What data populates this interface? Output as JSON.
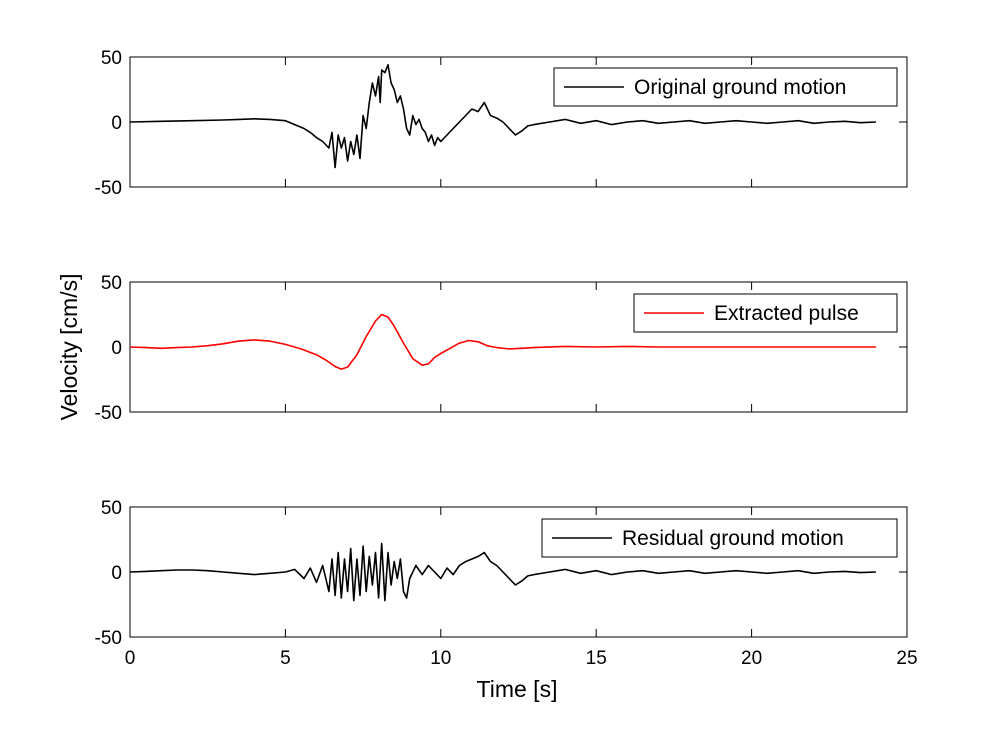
{
  "chart_data": {
    "type": "line",
    "xlabel": "Time [s]",
    "ylabel": "Velocity [cm/s]",
    "xlim": [
      0,
      25
    ],
    "ylim": [
      -50,
      50
    ],
    "xticks": [
      0,
      5,
      10,
      15,
      20,
      25
    ],
    "yticks": [
      -50,
      0,
      50
    ],
    "grid": false,
    "legend_position": "top-right",
    "panels": [
      {
        "series": [
          {
            "name": "Original ground motion",
            "color": "#000000",
            "x": [
              0,
              1,
              2,
              3,
              3.5,
              4,
              4.5,
              5,
              5.3,
              5.6,
              5.8,
              6,
              6.2,
              6.4,
              6.5,
              6.6,
              6.7,
              6.8,
              6.9,
              7,
              7.1,
              7.2,
              7.3,
              7.4,
              7.5,
              7.6,
              7.7,
              7.8,
              7.9,
              8,
              8.05,
              8.1,
              8.2,
              8.3,
              8.4,
              8.5,
              8.6,
              8.7,
              8.8,
              8.9,
              9,
              9.1,
              9.2,
              9.3,
              9.4,
              9.5,
              9.6,
              9.7,
              9.8,
              9.9,
              10,
              10.2,
              10.4,
              10.6,
              10.8,
              11,
              11.2,
              11.4,
              11.6,
              11.8,
              12,
              12.2,
              12.4,
              12.6,
              12.8,
              13,
              13.5,
              14,
              14.5,
              15,
              15.5,
              16,
              16.5,
              17,
              17.5,
              18,
              18.5,
              19,
              19.5,
              20,
              20.5,
              21,
              21.5,
              22,
              22.5,
              23,
              23.5,
              24
            ],
            "y": [
              0,
              0.5,
              1,
              1.5,
              2,
              2.5,
              2,
              1,
              -2,
              -5,
              -8,
              -12,
              -15,
              -20,
              -8,
              -35,
              -10,
              -20,
              -12,
              -30,
              -15,
              -25,
              -10,
              -28,
              5,
              -5,
              15,
              30,
              20,
              35,
              15,
              40,
              38,
              44,
              30,
              25,
              15,
              20,
              10,
              -5,
              -10,
              5,
              -2,
              2,
              -5,
              -8,
              -15,
              -10,
              -18,
              -12,
              -15,
              -10,
              -5,
              0,
              5,
              10,
              8,
              15,
              5,
              3,
              0,
              -5,
              -10,
              -7,
              -3,
              -2,
              0,
              2,
              -1,
              1,
              -2,
              0,
              1,
              -1,
              0,
              1,
              -1,
              0,
              1,
              0,
              -1,
              0,
              1,
              -1,
              0,
              0.5,
              -0.5,
              0
            ]
          }
        ]
      },
      {
        "series": [
          {
            "name": "Extracted pulse",
            "color": "#ff0000",
            "x": [
              0,
              0.5,
              1,
              1.5,
              2,
              2.5,
              3,
              3.5,
              4,
              4.5,
              5,
              5.5,
              6,
              6.3,
              6.6,
              6.8,
              7,
              7.3,
              7.6,
              7.9,
              8.1,
              8.3,
              8.5,
              8.8,
              9.1,
              9.4,
              9.6,
              9.8,
              10,
              10.3,
              10.6,
              10.9,
              11.2,
              11.5,
              11.8,
              12.2,
              12.6,
              13,
              14,
              15,
              16,
              17,
              18,
              19,
              20,
              21,
              22,
              23,
              24
            ],
            "y": [
              0,
              -0.5,
              -1,
              -0.5,
              0,
              1,
              2.5,
              4.5,
              5.5,
              4.5,
              2,
              -1.5,
              -6,
              -10,
              -15,
              -17,
              -15.5,
              -6,
              8,
              20,
              25,
              23,
              16,
              3,
              -9,
              -14,
              -13,
              -8,
              -5,
              -1,
              3,
              5,
              4,
              1,
              -0.5,
              -1.5,
              -1,
              -0.5,
              0.5,
              0,
              0.5,
              0,
              0,
              0,
              0,
              0,
              0,
              0,
              0
            ]
          }
        ]
      },
      {
        "series": [
          {
            "name": "Residual ground motion",
            "color": "#000000",
            "x": [
              0,
              0.5,
              1,
              1.5,
              2,
              2.5,
              3,
              3.5,
              4,
              4.5,
              5,
              5.3,
              5.6,
              5.8,
              6,
              6.2,
              6.4,
              6.5,
              6.6,
              6.7,
              6.8,
              6.9,
              7,
              7.1,
              7.2,
              7.3,
              7.4,
              7.5,
              7.6,
              7.7,
              7.8,
              7.9,
              8,
              8.1,
              8.2,
              8.3,
              8.4,
              8.5,
              8.6,
              8.7,
              8.8,
              8.9,
              9,
              9.2,
              9.4,
              9.6,
              9.8,
              10,
              10.2,
              10.4,
              10.6,
              10.8,
              11,
              11.2,
              11.4,
              11.6,
              11.8,
              12,
              12.2,
              12.4,
              12.6,
              12.8,
              13,
              13.5,
              14,
              14.5,
              15,
              15.5,
              16,
              16.5,
              17,
              17.5,
              18,
              18.5,
              19,
              19.5,
              20,
              20.5,
              21,
              21.5,
              22,
              22.5,
              23,
              23.5,
              24
            ],
            "y": [
              0,
              0.5,
              1,
              1.5,
              1.5,
              1,
              0,
              -1,
              -2,
              -1,
              0,
              2,
              -5,
              3,
              -8,
              5,
              -15,
              10,
              -18,
              15,
              -20,
              10,
              -15,
              18,
              -22,
              10,
              -18,
              20,
              -15,
              12,
              -10,
              15,
              -20,
              22,
              -22,
              15,
              -10,
              8,
              -5,
              10,
              -15,
              -20,
              -5,
              5,
              -2,
              5,
              0,
              -5,
              3,
              -2,
              5,
              8,
              10,
              12,
              15,
              8,
              5,
              0,
              -5,
              -10,
              -7,
              -3,
              -2,
              0,
              2,
              -1,
              1,
              -2,
              0,
              1,
              -1,
              0,
              1,
              -1,
              0,
              1,
              0,
              -1,
              0,
              1,
              -1,
              0,
              0.5,
              -0.5,
              0
            ]
          }
        ]
      }
    ]
  }
}
